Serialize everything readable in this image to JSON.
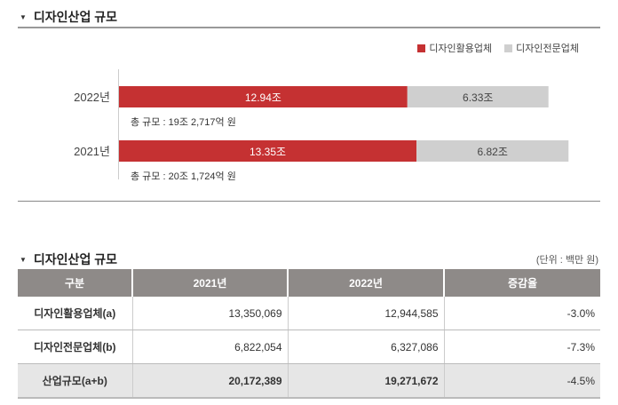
{
  "section1": {
    "title": "디자인산업 규모"
  },
  "section2": {
    "title": "디자인산업 규모",
    "unit": "(단위 : 백만 원)"
  },
  "chart_data": {
    "type": "bar",
    "orientation": "horizontal",
    "stacked": true,
    "categories": [
      "2022년",
      "2021년"
    ],
    "series": [
      {
        "name": "디자인활용업체",
        "color": "#c53132",
        "values": [
          12.94,
          13.35
        ],
        "labels": [
          "12.94조",
          "13.35조"
        ]
      },
      {
        "name": "디자인전문업체",
        "color": "#cfcfcf",
        "values": [
          6.33,
          6.82
        ],
        "labels": [
          "6.33조",
          "6.82조"
        ]
      }
    ],
    "totals": [
      "총 규모 : 19조 2,717억 원",
      "총 규모 : 20조 1,724억 원"
    ],
    "unit": "조"
  },
  "table": {
    "headers": [
      "구분",
      "2021년",
      "2022년",
      "증감율"
    ],
    "rows": [
      [
        "디자인활용업체(a)",
        "13,350,069",
        "12,944,585",
        "-3.0%"
      ],
      [
        "디자인전문업체(b)",
        "6,822,054",
        "6,327,086",
        "-7.3%"
      ],
      [
        "산업규모(a+b)",
        "20,172,389",
        "19,271,672",
        "-4.5%"
      ]
    ]
  }
}
